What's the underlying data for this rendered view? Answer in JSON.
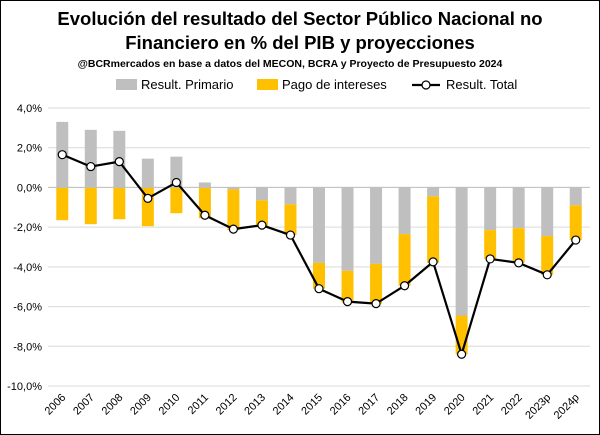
{
  "chart_data": {
    "type": "bar",
    "title_line1": "Evolución del resultado del Sector Público Nacional no",
    "title_line2": "Financiero en % del PIB y proyecciones",
    "subtitle": "@BCRmercados en base a datos del MECON, BCRA y Proyecto de Presupuesto 2024",
    "categories": [
      "2006",
      "2007",
      "2008",
      "2009",
      "2010",
      "2011",
      "2012",
      "2013",
      "2014",
      "2015",
      "2016",
      "2017",
      "2018",
      "2019",
      "2020",
      "2021",
      "2022",
      "2023p",
      "2024p"
    ],
    "ylim": [
      -10,
      4
    ],
    "yticks": [
      "4,0%",
      "2,0%",
      "0,0%",
      "-2,0%",
      "-4,0%",
      "-6,0%",
      "-8,0%",
      "-10,0%"
    ],
    "grid": true,
    "legend_position": "top",
    "series": [
      {
        "name": "Result. Primario",
        "kind": "bar",
        "color": "#bfbfbf",
        "values": [
          3.3,
          2.9,
          2.85,
          1.45,
          1.55,
          0.25,
          -0.1,
          -0.65,
          -0.85,
          -3.8,
          -4.2,
          -3.85,
          -2.35,
          -0.45,
          -6.45,
          -2.15,
          -2.05,
          -2.45,
          -0.9
        ]
      },
      {
        "name": "Pago de intereses",
        "kind": "bar",
        "color": "#ffc000",
        "values": [
          -1.65,
          -1.85,
          -1.6,
          -1.95,
          -1.3,
          -1.55,
          -2.05,
          -1.3,
          -1.55,
          -1.3,
          -1.6,
          -2.0,
          -2.6,
          -3.35,
          -1.95,
          -1.45,
          -1.75,
          -1.95,
          -1.75
        ]
      },
      {
        "name": "Result. Total",
        "kind": "line",
        "color": "#000000",
        "values": [
          1.65,
          1.05,
          1.3,
          -0.55,
          0.25,
          -1.4,
          -2.1,
          -1.9,
          -2.4,
          -5.1,
          -5.75,
          -5.85,
          -4.95,
          -3.75,
          -8.4,
          -3.6,
          -3.8,
          -4.4,
          -2.65
        ]
      }
    ]
  }
}
